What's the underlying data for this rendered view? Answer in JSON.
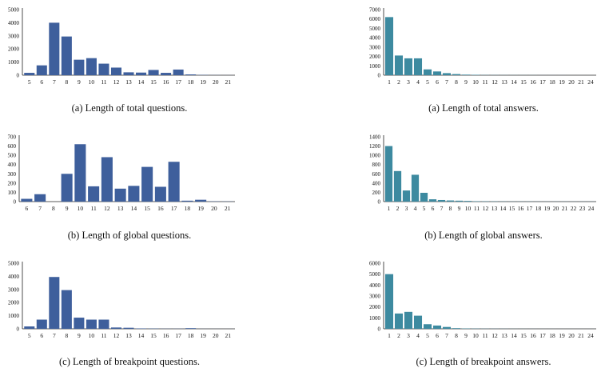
{
  "chart_data": [
    {
      "type": "bar",
      "caption": "(a) Length of total questions.",
      "categories": [
        "5",
        "6",
        "7",
        "8",
        "9",
        "10",
        "11",
        "12",
        "13",
        "14",
        "15",
        "16",
        "17",
        "18",
        "19",
        "20",
        "21"
      ],
      "values": [
        180,
        750,
        4000,
        2950,
        1180,
        1300,
        880,
        580,
        220,
        200,
        400,
        180,
        430,
        60,
        20,
        10,
        5
      ],
      "ylim": [
        0,
        5000
      ],
      "yticks": [
        "0",
        "1000",
        "2000",
        "3000",
        "4000",
        "5000"
      ],
      "color": "#3e5f9c"
    },
    {
      "type": "bar",
      "caption": "(a) Length of total answers.",
      "categories": [
        "1",
        "2",
        "3",
        "4",
        "5",
        "6",
        "7",
        "8",
        "9",
        "10",
        "11",
        "12",
        "13",
        "14",
        "15",
        "16",
        "17",
        "18",
        "19",
        "20",
        "21",
        "24"
      ],
      "values": [
        6200,
        2100,
        1800,
        1800,
        620,
        400,
        220,
        120,
        60,
        40,
        20,
        15,
        12,
        10,
        8,
        8,
        5,
        5,
        4,
        3,
        3,
        3
      ],
      "ylim": [
        0,
        7000
      ],
      "yticks": [
        "0",
        "1000",
        "2000",
        "3000",
        "4000",
        "5000",
        "6000",
        "7000"
      ],
      "color": "#3d8aa0"
    },
    {
      "type": "bar",
      "caption": "(b) Length of global questions.",
      "categories": [
        "6",
        "7",
        "8",
        "9",
        "10",
        "11",
        "12",
        "13",
        "14",
        "15",
        "16",
        "17",
        "18",
        "19",
        "20",
        "21"
      ],
      "values": [
        30,
        80,
        0,
        300,
        620,
        165,
        480,
        140,
        170,
        375,
        160,
        430,
        10,
        20,
        3,
        2
      ],
      "ylim": [
        0,
        700
      ],
      "yticks": [
        "0",
        "100",
        "200",
        "300",
        "400",
        "500",
        "600",
        "700"
      ],
      "color": "#3e5f9c"
    },
    {
      "type": "bar",
      "caption": "(b) Length of global answers.",
      "categories": [
        "1",
        "2",
        "3",
        "4",
        "5",
        "6",
        "7",
        "8",
        "9",
        "10",
        "11",
        "12",
        "13",
        "14",
        "15",
        "16",
        "17",
        "18",
        "19",
        "20",
        "21",
        "22",
        "23",
        "24"
      ],
      "values": [
        1200,
        660,
        240,
        580,
        190,
        50,
        35,
        25,
        20,
        15,
        8,
        6,
        5,
        4,
        3,
        3,
        3,
        2,
        2,
        2,
        2,
        2,
        2,
        2
      ],
      "ylim": [
        0,
        1400
      ],
      "yticks": [
        "0",
        "200",
        "400",
        "600",
        "800",
        "1000",
        "1200",
        "1400"
      ],
      "color": "#3d8aa0"
    },
    {
      "type": "bar",
      "caption": "(c) Length of breakpoint questions.",
      "categories": [
        "5",
        "6",
        "7",
        "8",
        "9",
        "10",
        "11",
        "12",
        "13",
        "14",
        "15",
        "16",
        "17",
        "18",
        "19",
        "20",
        "21"
      ],
      "values": [
        180,
        700,
        3950,
        2950,
        850,
        700,
        700,
        100,
        80,
        30,
        20,
        10,
        10,
        50,
        5,
        3,
        2
      ],
      "ylim": [
        0,
        5000
      ],
      "yticks": [
        "0",
        "1000",
        "2000",
        "3000",
        "4000",
        "5000"
      ],
      "color": "#3e5f9c"
    },
    {
      "type": "bar",
      "caption": "(c) Length of breakpoint answers.",
      "categories": [
        "1",
        "2",
        "3",
        "4",
        "5",
        "6",
        "7",
        "8",
        "9",
        "10",
        "11",
        "12",
        "13",
        "14",
        "15",
        "16",
        "17",
        "18",
        "19",
        "20",
        "21",
        "24"
      ],
      "values": [
        5000,
        1400,
        1550,
        1200,
        420,
        300,
        170,
        60,
        30,
        20,
        12,
        10,
        8,
        6,
        5,
        4,
        3,
        3,
        2,
        2,
        2,
        2
      ],
      "ylim": [
        0,
        6000
      ],
      "yticks": [
        "0",
        "1000",
        "2000",
        "3000",
        "4000",
        "5000",
        "6000"
      ],
      "color": "#3d8aa0"
    }
  ]
}
